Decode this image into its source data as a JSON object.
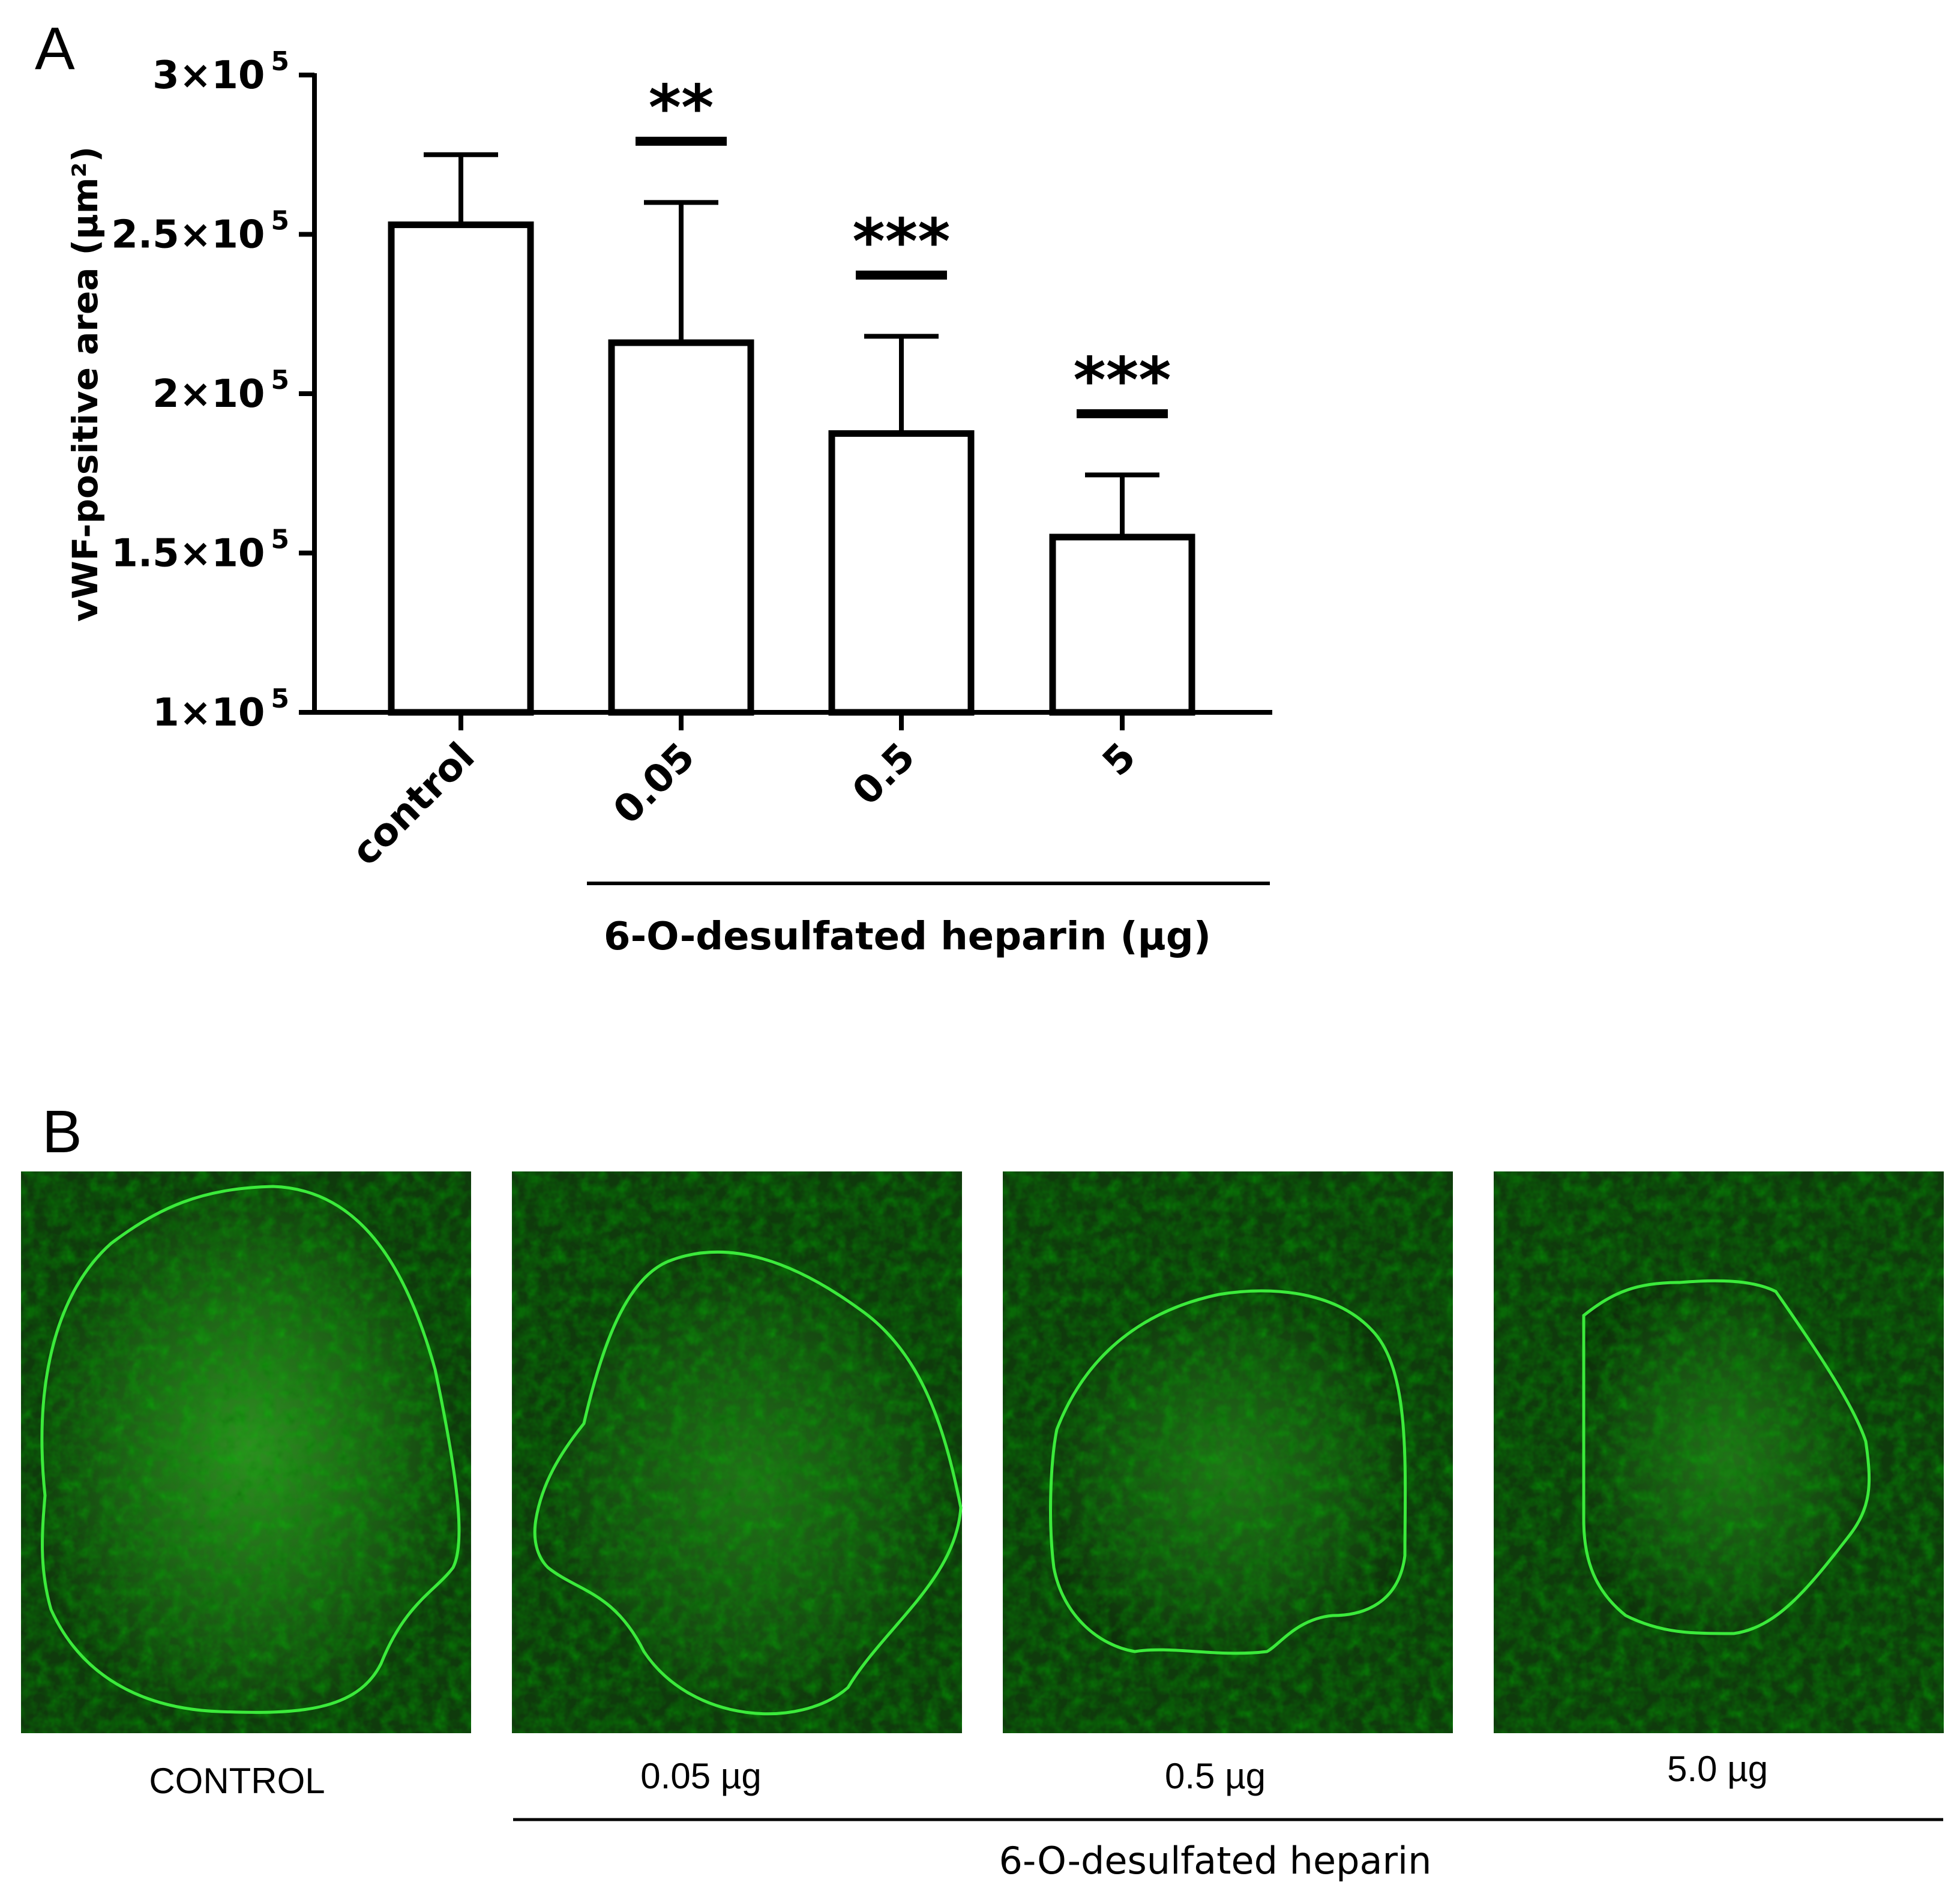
{
  "panel_a": {
    "letter": "A"
  },
  "panel_b": {
    "letter": "B",
    "captions": [
      "CONTROL",
      "0.05 µg",
      "0.5 µg",
      "5.0 µg"
    ],
    "group_label": "6-O-desulfated heparin",
    "colors": {
      "outline": "#3bea3b",
      "tissue": "#0f3a0c"
    },
    "outline_areas_relative": [
      1.0,
      0.78,
      0.68,
      0.48
    ]
  },
  "chart_data": {
    "type": "bar",
    "title": "",
    "categories": [
      "control",
      "0.05",
      "0.5",
      "5"
    ],
    "values": [
      253000,
      216000,
      187500,
      155000
    ],
    "error_upper": [
      275000,
      260000,
      218000,
      174500
    ],
    "significance": [
      "",
      "**",
      "***",
      "***"
    ],
    "ylabel": "vWF-positive area (µm²)",
    "xlabel": "6-O-desulfated heparin (µg)",
    "ylim": [
      100000,
      300000
    ],
    "yticks": [
      100000,
      150000,
      200000,
      250000,
      300000
    ],
    "ytick_labels": [
      {
        "base": "1×10",
        "exp": "5"
      },
      {
        "base": "1.5×10",
        "exp": "5"
      },
      {
        "base": "2×10",
        "exp": "5"
      },
      {
        "base": "2.5×10",
        "exp": "5"
      },
      {
        "base": "3×10",
        "exp": "5"
      }
    ],
    "bar_fill": "#ffffff",
    "bar_stroke": "#000000",
    "grid": false,
    "legend": "none"
  }
}
